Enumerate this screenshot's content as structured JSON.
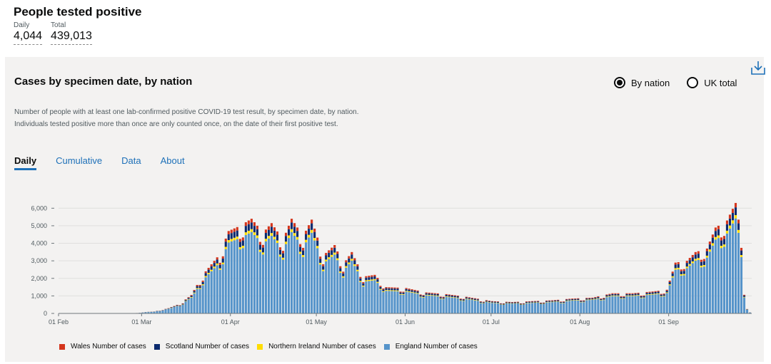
{
  "headline": {
    "title": "People tested positive",
    "daily_label": "Daily",
    "daily_value": "4,044",
    "total_label": "Total",
    "total_value": "439,013"
  },
  "card": {
    "title": "Cases by specimen date, by nation",
    "radio_options": [
      {
        "label": "By nation",
        "selected": true
      },
      {
        "label": "UK total",
        "selected": false
      }
    ],
    "description": "Number of people with at least one lab-confirmed positive COVID-19 test result, by specimen date, by nation. Individuals tested positive more than once are only counted once, on the date of their first positive test.",
    "tabs": [
      {
        "label": "Daily",
        "active": true
      },
      {
        "label": "Cumulative",
        "active": false
      },
      {
        "label": "Data",
        "active": false
      },
      {
        "label": "About",
        "active": false
      }
    ]
  },
  "icons": {
    "download": "download-icon"
  },
  "colors": {
    "wales": "#d4351c",
    "scotland": "#0b2a6e",
    "northern_ireland": "#ffdd00",
    "england": "#5694ca",
    "link": "#1d70b8"
  },
  "chart_data": {
    "type": "bar",
    "stacked": true,
    "x_start": "2020-02-01",
    "x_end": "2020-09-29",
    "x_ticks": [
      "01 Feb",
      "01 Mar",
      "01 Apr",
      "01 May",
      "01 Jun",
      "01 Jul",
      "01 Aug",
      "01 Sep"
    ],
    "ylim": [
      0,
      6500
    ],
    "y_ticks": [
      "0",
      "1,000",
      "2,000",
      "3,000",
      "4,000",
      "5,000",
      "6,000"
    ],
    "y_tick_values": [
      0,
      1000,
      2000,
      3000,
      4000,
      5000,
      6000
    ],
    "grid": true,
    "legend_placement": "bottom",
    "series_order": [
      "England",
      "Northern Ireland",
      "Scotland",
      "Wales"
    ],
    "legend": [
      {
        "name": "Wales Number of cases",
        "color": "#d4351c"
      },
      {
        "name": "Scotland Number of cases",
        "color": "#0b2a6e"
      },
      {
        "name": "Northern Ireland Number of cases",
        "color": "#ffdd00"
      },
      {
        "name": "England Number of cases",
        "color": "#5694ca"
      }
    ],
    "total_anchors": [
      [
        "2020-02-01",
        0
      ],
      [
        "2020-02-27",
        0
      ],
      [
        "2020-03-01",
        70
      ],
      [
        "2020-03-05",
        110
      ],
      [
        "2020-03-10",
        300
      ],
      [
        "2020-03-14",
        550
      ],
      [
        "2020-03-18",
        1050
      ],
      [
        "2020-03-22",
        2200
      ],
      [
        "2020-03-25",
        2800
      ],
      [
        "2020-03-28",
        3400
      ],
      [
        "2020-03-31",
        4700
      ],
      [
        "2020-04-04",
        5000
      ],
      [
        "2020-04-08",
        5400
      ],
      [
        "2020-04-12",
        4600
      ],
      [
        "2020-04-15",
        5150
      ],
      [
        "2020-04-19",
        4200
      ],
      [
        "2020-04-22",
        5400
      ],
      [
        "2020-04-26",
        4400
      ],
      [
        "2020-04-29",
        5350
      ],
      [
        "2020-05-03",
        3300
      ],
      [
        "2020-05-07",
        3900
      ],
      [
        "2020-05-10",
        2800
      ],
      [
        "2020-05-13",
        3500
      ],
      [
        "2020-05-17",
        2100
      ],
      [
        "2020-05-21",
        2200
      ],
      [
        "2020-05-25",
        1500
      ],
      [
        "2020-06-01",
        1450
      ],
      [
        "2020-06-08",
        1200
      ],
      [
        "2020-06-15",
        1100
      ],
      [
        "2020-06-22",
        950
      ],
      [
        "2020-07-01",
        700
      ],
      [
        "2020-07-08",
        650
      ],
      [
        "2020-07-15",
        700
      ],
      [
        "2020-07-22",
        750
      ],
      [
        "2020-07-29",
        850
      ],
      [
        "2020-08-05",
        900
      ],
      [
        "2020-08-12",
        1150
      ],
      [
        "2020-08-19",
        1150
      ],
      [
        "2020-08-26",
        1250
      ],
      [
        "2020-08-31",
        1350
      ],
      [
        "2020-09-03",
        2900
      ],
      [
        "2020-09-07",
        3000
      ],
      [
        "2020-09-10",
        3500
      ],
      [
        "2020-09-14",
        3700
      ],
      [
        "2020-09-17",
        4900
      ],
      [
        "2020-09-21",
        5300
      ],
      [
        "2020-09-24",
        6300
      ],
      [
        "2020-09-26",
        4400
      ],
      [
        "2020-09-27",
        1250
      ],
      [
        "2020-09-28",
        250
      ],
      [
        "2020-09-29",
        60
      ]
    ],
    "series_shares": {
      "England": 0.86,
      "Northern Ireland": 0.03,
      "Scotland": 0.07,
      "Wales": 0.04
    }
  }
}
